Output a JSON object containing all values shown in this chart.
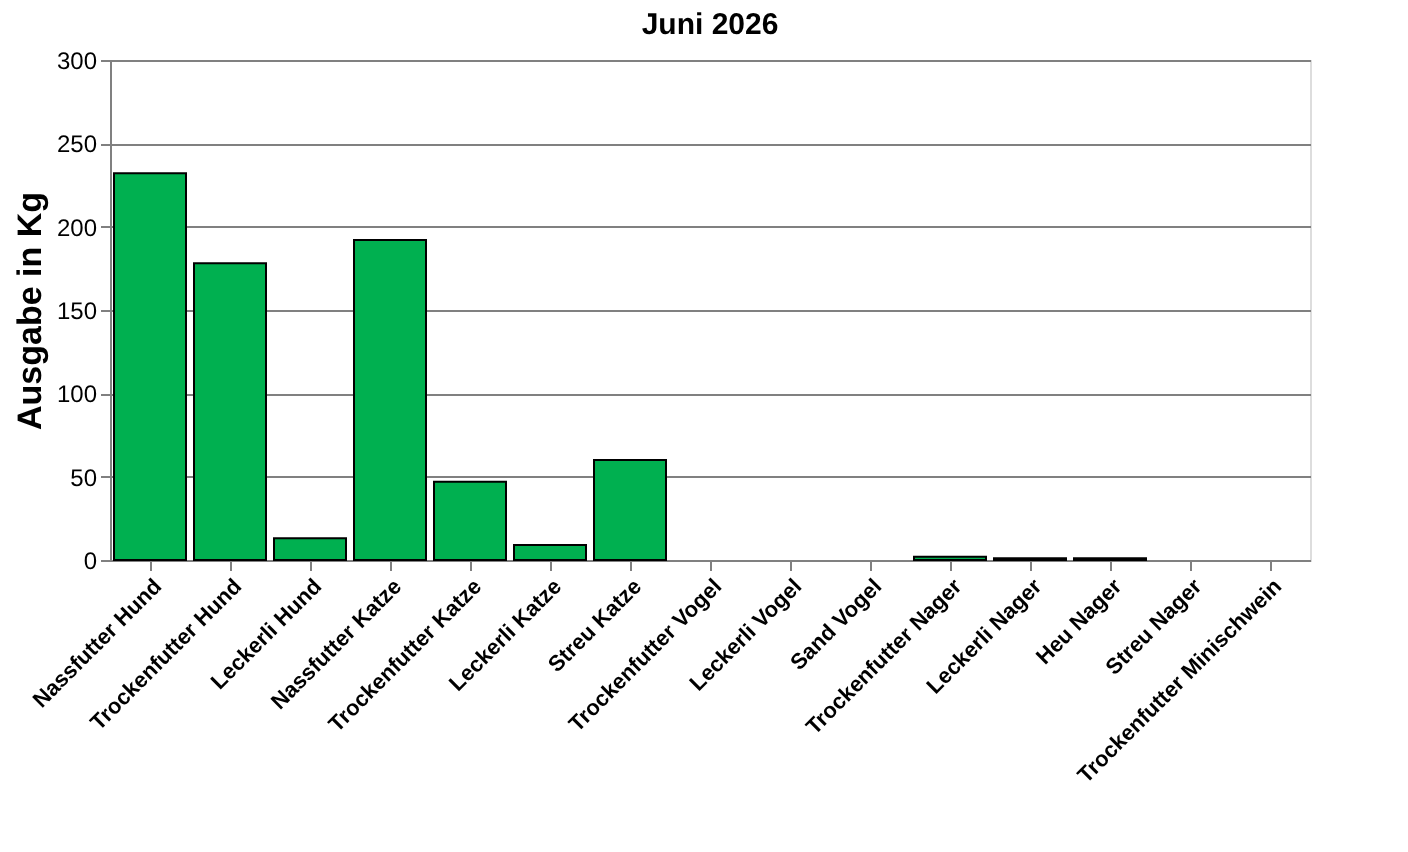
{
  "chart_data": {
    "type": "bar",
    "title": "Juni 2026",
    "ylabel": "Ausgabe in Kg",
    "categories": [
      "Nassfutter Hund",
      "Trockenfutter Hund",
      "Leckerli Hund",
      "Nassfutter Katze",
      "Trockenfutter Katze",
      "Leckerli Katze",
      "Streu Katze",
      "Trockenfutter Vogel",
      "Leckerli Vogel",
      "Sand Vogel",
      "Trockenfutter Nager",
      "Leckerli Nager",
      "Heu Nager",
      "Streu Nager",
      "Trockenfutter Minischwein"
    ],
    "values": [
      232,
      178,
      13,
      192,
      47,
      9,
      60,
      0,
      0,
      0,
      2,
      1,
      1,
      0,
      0
    ],
    "color": "#00b050",
    "ylim": [
      0,
      300
    ],
    "yticks": [
      0,
      50,
      100,
      150,
      200,
      250,
      300
    ],
    "grid": "y"
  }
}
